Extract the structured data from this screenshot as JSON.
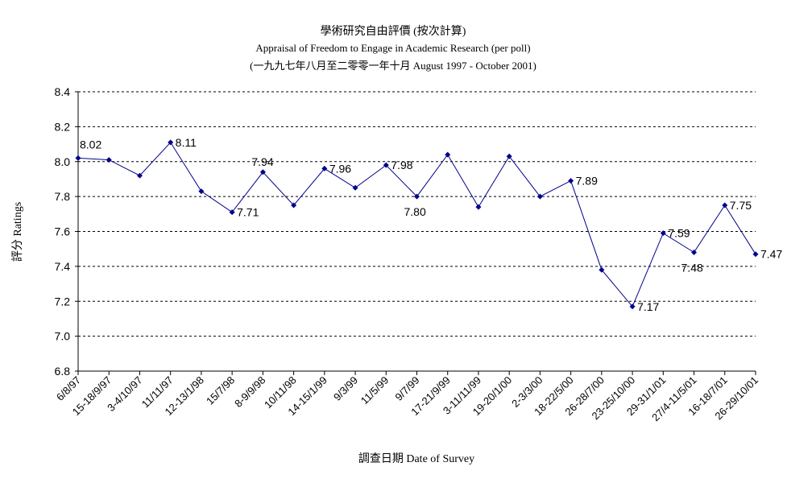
{
  "chart_data": {
    "type": "line",
    "title": "學術研究自由評價 (按次計算)",
    "subtitle": "Appraisal of Freedom to Engage in Academic Research (per poll)",
    "subtitle2": "(一九九七年八月至二零零一年十月 August 1997 - October 2001)",
    "xlabel": "調查日期 Date of Survey",
    "ylabel": "評分 Ratings",
    "ylim": [
      6.8,
      8.4
    ],
    "yticks": [
      "6.8",
      "7.0",
      "7.2",
      "7.4",
      "7.6",
      "7.8",
      "8.0",
      "8.2",
      "8.4"
    ],
    "grid": true,
    "color": "#00008B",
    "categories": [
      "6/8/97",
      "15-18/9/97",
      "3-4/10/97",
      "11/11/97",
      "12-13/1/98",
      "15/7/98",
      "8-9/9/98",
      "10/11/98",
      "14-15/1/99",
      "9/3/99",
      "11/5/99",
      "9/7/99",
      "17-21/9/99",
      "3-11/11/99",
      "19-20/1/00",
      "2-3/3/00",
      "18-22/5/00",
      "26-28/7/00",
      "23-25/10/00",
      "29-31/1/01",
      "27/4-11/5/01",
      "16-18/7/01",
      "26-29/10/01"
    ],
    "x_label_positions": [
      0,
      1,
      2,
      3,
      4,
      5,
      6,
      7,
      8,
      9,
      10,
      11,
      12,
      13,
      14,
      15,
      16,
      17,
      18,
      19,
      20,
      21,
      22
    ],
    "values": [
      8.02,
      8.01,
      7.92,
      8.11,
      7.83,
      7.71,
      7.94,
      7.75,
      7.96,
      7.85,
      7.98,
      7.8,
      8.04,
      7.74,
      8.03,
      7.8,
      7.89,
      7.38,
      7.17,
      7.59,
      7.48,
      7.75,
      7.47
    ],
    "data_labels": [
      {
        "index": 0,
        "text": "8.02"
      },
      {
        "index": 3,
        "text": "8.11"
      },
      {
        "index": 5,
        "text": "7.71"
      },
      {
        "index": 6,
        "text": "7.94"
      },
      {
        "index": 8,
        "text": "7.96"
      },
      {
        "index": 10,
        "text": "7.98"
      },
      {
        "index": 11,
        "text": "7.80"
      },
      {
        "index": 16,
        "text": "7.89"
      },
      {
        "index": 18,
        "text": "7.17"
      },
      {
        "index": 19,
        "text": "7.59"
      },
      {
        "index": 20,
        "text": "7.48"
      },
      {
        "index": 21,
        "text": "7.75"
      },
      {
        "index": 22,
        "text": "7.47"
      }
    ]
  }
}
